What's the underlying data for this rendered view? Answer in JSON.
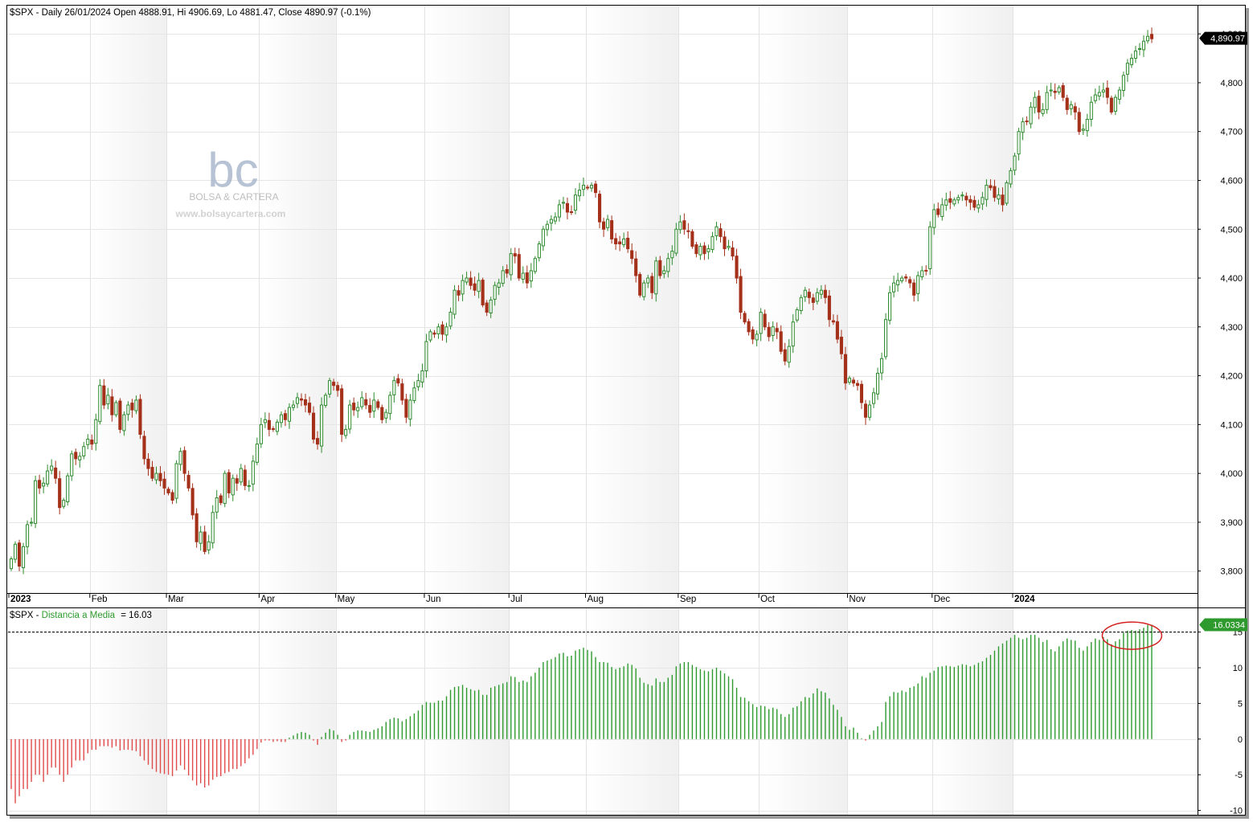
{
  "header": {
    "title": "$SPX - Daily 26/01/2024 Open 4888.91, Hi 4906.69, Lo 4881.47, Close 4890.97 (-0.1%)"
  },
  "watermark": {
    "logo": "bc",
    "name": "BOLSA & CARTERA",
    "url": "www.bolsaycartera.com"
  },
  "lower_panel": {
    "symbol": "$SPX",
    "indicator": "Distancia a Media",
    "value_text": "= 16.03"
  },
  "colors": {
    "up": "#2e8b2e",
    "down": "#a5301a",
    "indicator_pos": "#2e9a2e",
    "indicator_neg": "#e04a4a",
    "highlight_circle": "#d42020",
    "band_shade": "#f0f0f0"
  },
  "chart_data": [
    {
      "type": "candlestick",
      "title": "$SPX - Daily 26/01/2024 Open 4888.91, Hi 4906.69, Lo 4881.47, Close 4890.97 (-0.1%)",
      "ylim": [
        3760,
        4920
      ],
      "y_ticks": [
        3800,
        3900,
        4000,
        4100,
        4200,
        4300,
        4400,
        4500,
        4600,
        4700,
        4800,
        4900
      ],
      "y_tick_labels": [
        "3,800",
        "3,900",
        "4,000",
        "4,100",
        "4,200",
        "4,300",
        "4,400",
        "4,500",
        "4,600",
        "4,700",
        "4,800",
        "4,900"
      ],
      "last_price_label": "4,890.97",
      "last_price": 4890.97,
      "months": [
        {
          "label": "2023",
          "bold": true
        },
        {
          "label": "Feb",
          "bold": false
        },
        {
          "label": "Mar",
          "bold": false
        },
        {
          "label": "Apr",
          "bold": false
        },
        {
          "label": "May",
          "bold": false
        },
        {
          "label": "Jun",
          "bold": false
        },
        {
          "label": "Jul",
          "bold": false
        },
        {
          "label": "Aug",
          "bold": false
        },
        {
          "label": "Sep",
          "bold": false
        },
        {
          "label": "Oct",
          "bold": false
        },
        {
          "label": "Nov",
          "bold": false
        },
        {
          "label": "Dec",
          "bold": false
        },
        {
          "label": "2024",
          "bold": true
        }
      ],
      "month_start_index": [
        0,
        20,
        39,
        62,
        81,
        103,
        124,
        143,
        166,
        186,
        208,
        229,
        249
      ],
      "close": [
        3825,
        3855,
        3810,
        3850,
        3895,
        3900,
        3985,
        3970,
        3980,
        4005,
        4015,
        3990,
        3930,
        3945,
        3995,
        4040,
        4030,
        4035,
        4055,
        4070,
        4060,
        4110,
        4180,
        4140,
        4160,
        4120,
        4145,
        4090,
        4120,
        4140,
        4130,
        4150,
        4080,
        4030,
        4010,
        3990,
        4000,
        3985,
        3970,
        3960,
        3945,
        4020,
        4045,
        4000,
        3970,
        3915,
        3860,
        3880,
        3840,
        3860,
        3920,
        3950,
        3940,
        4000,
        3960,
        3990,
        3980,
        4010,
        3975,
        3975,
        4025,
        4060,
        4100,
        4110,
        4090,
        4090,
        4105,
        4120,
        4110,
        4135,
        4140,
        4155,
        4150,
        4140,
        4125,
        4070,
        4060,
        4140,
        4160,
        4190,
        4180,
        4170,
        4080,
        4090,
        4140,
        4130,
        4135,
        4155,
        4140,
        4125,
        4150,
        4135,
        4110,
        4125,
        4160,
        4190,
        4185,
        4150,
        4115,
        4150,
        4175,
        4190,
        4210,
        4270,
        4290,
        4285,
        4300,
        4285,
        4300,
        4330,
        4375,
        4365,
        4395,
        4400,
        4385,
        4375,
        4395,
        4345,
        4330,
        4355,
        4385,
        4390,
        4415,
        4410,
        4450,
        4445,
        4400,
        4410,
        4390,
        4415,
        4440,
        4470,
        4500,
        4510,
        4520,
        4525,
        4550,
        4555,
        4535,
        4535,
        4570,
        4580,
        4590,
        4585,
        4590,
        4575,
        4515,
        4500,
        4520,
        4480,
        4470,
        4470,
        4480,
        4460,
        4440,
        4405,
        4365,
        4390,
        4400,
        4370,
        4435,
        4405,
        4415,
        4440,
        4455,
        4500,
        4515,
        4500,
        4495,
        4465,
        4450,
        4465,
        4450,
        4460,
        4485,
        4505,
        4485,
        4460,
        4465,
        4445,
        4400,
        4330,
        4310,
        4290,
        4275,
        4285,
        4330,
        4300,
        4280,
        4300,
        4290,
        4250,
        4230,
        4260,
        4310,
        4335,
        4360,
        4375,
        4360,
        4350,
        4370,
        4375,
        4360,
        4315,
        4310,
        4275,
        4245,
        4185,
        4195,
        4185,
        4180,
        4145,
        4115,
        4140,
        4165,
        4205,
        4235,
        4315,
        4370,
        4390,
        4395,
        4400,
        4400,
        4390,
        4365,
        4405,
        4415,
        4415,
        4505,
        4540,
        4530,
        4550,
        4560,
        4555,
        4560,
        4565,
        4570,
        4560,
        4555,
        4545,
        4550,
        4565,
        4590,
        4585,
        4565,
        4570,
        4550,
        4595,
        4620,
        4650,
        4700,
        4720,
        4720,
        4750,
        4770,
        4740,
        4745,
        4780,
        4785,
        4780,
        4790,
        4770,
        4745,
        4755,
        4740,
        4700,
        4705,
        4725,
        4760,
        4775,
        4780,
        4785,
        4770,
        4740,
        4770,
        4785,
        4815,
        4840,
        4850,
        4865,
        4870,
        4885,
        4895,
        4890
      ]
    },
    {
      "type": "bar",
      "title": "$SPX - Distancia a Media = 16.03",
      "series_name": "Distancia a Media",
      "ylim": [
        -10.5,
        18
      ],
      "y_ticks": [
        -10,
        -5,
        0,
        5,
        10,
        15
      ],
      "y_tick_labels": [
        "-10",
        "-5",
        "0",
        "5",
        "10",
        "15"
      ],
      "reference_line": 15,
      "last_value_label": "16.0334",
      "last_value": 16.0334,
      "values": [
        -7,
        -9,
        -8,
        -7,
        -7,
        -6,
        -5,
        -5,
        -6,
        -5,
        -4,
        -4,
        -5,
        -6,
        -5,
        -4,
        -3,
        -3,
        -3,
        -2,
        -1.5,
        -1.5,
        -1,
        -1,
        -1,
        -1.2,
        -1,
        -1.6,
        -1.5,
        -1.5,
        -1.6,
        -1.7,
        -2.4,
        -3,
        -3.6,
        -4.2,
        -4.6,
        -4.8,
        -4.9,
        -5,
        -5.2,
        -4.4,
        -3.7,
        -4.3,
        -5.1,
        -5.8,
        -6.5,
        -6.2,
        -6.8,
        -6.5,
        -5.7,
        -5.3,
        -5.2,
        -4.8,
        -4.6,
        -4.2,
        -4.2,
        -3.8,
        -3.4,
        -2.7,
        -2.2,
        -1.4,
        -0.5,
        -0.2,
        -0.2,
        -0.4,
        -0.3,
        -0.4,
        -0.4,
        0.2,
        0.5,
        0.8,
        1.0,
        0.9,
        0.6,
        -0.2,
        -0.8,
        0.3,
        0.9,
        1.4,
        1.2,
        0.6,
        -0.4,
        -0.2,
        0.6,
        1.0,
        1.2,
        1.2,
        1.1,
        1.0,
        1.3,
        1.5,
        1.8,
        2.4,
        2.8,
        3.0,
        2.9,
        2.5,
        2.8,
        3.2,
        3.6,
        4.0,
        4.8,
        5.2,
        5.1,
        5.1,
        5.4,
        5.4,
        6.0,
        6.9,
        7.3,
        7.4,
        7.6,
        7.2,
        7.0,
        6.8,
        6.9,
        6.2,
        6.2,
        7.2,
        7.4,
        7.6,
        7.8,
        8.0,
        8.8,
        8.7,
        8.0,
        8.2,
        8.0,
        8.8,
        9.3,
        10.0,
        10.8,
        11.0,
        11.2,
        11.5,
        12.0,
        12.1,
        11.6,
        11.7,
        12.4,
        12.6,
        12.8,
        12.5,
        12.3,
        11.5,
        10.8,
        10.8,
        10.7,
        10.1,
        9.8,
        10.0,
        10.2,
        10.6,
        10.4,
        9.9,
        8.6,
        7.9,
        7.7,
        7.5,
        8.5,
        8.0,
        8.0,
        8.6,
        9.0,
        10.2,
        10.6,
        10.8,
        10.8,
        10.4,
        10.1,
        9.8,
        9.6,
        9.5,
        9.8,
        10.0,
        9.6,
        9.2,
        8.8,
        8.4,
        7.2,
        5.9,
        5.8,
        5.3,
        4.9,
        4.5,
        4.7,
        4.6,
        4.2,
        4.4,
        4.2,
        3.5,
        3.1,
        3.5,
        4.4,
        4.6,
        5.3,
        5.9,
        5.8,
        6.4,
        7.1,
        6.7,
        6.5,
        5.7,
        4.8,
        4.1,
        3.1,
        1.8,
        1.3,
        1.6,
        0.9,
        0.1,
        -0.2,
        0.6,
        1.2,
        1.8,
        2.4,
        5.2,
        6.0,
        6.6,
        6.5,
        6.8,
        6.6,
        7.2,
        7.4,
        7.8,
        8.8,
        8.6,
        9.3,
        9.6,
        10.1,
        10.2,
        10.3,
        10.2,
        10.1,
        10.3,
        10.5,
        10.4,
        10.2,
        10.4,
        10.7,
        10.9,
        11.4,
        11.8,
        12.4,
        13.0,
        13.4,
        13.8,
        14.2,
        14.6,
        14.2,
        14.0,
        14.2,
        14.6,
        14.6,
        14.2,
        13.6,
        13.9,
        12.6,
        12.3,
        13.0,
        13.7,
        14.1,
        13.9,
        13.8,
        12.8,
        12.4,
        13.0,
        13.6,
        14.1,
        13.9,
        14.3,
        14.0,
        13.3,
        13.7,
        14.0,
        14.9,
        15.2,
        15.3,
        15.2,
        15.4,
        15.6,
        16.0,
        16.03
      ]
    }
  ]
}
